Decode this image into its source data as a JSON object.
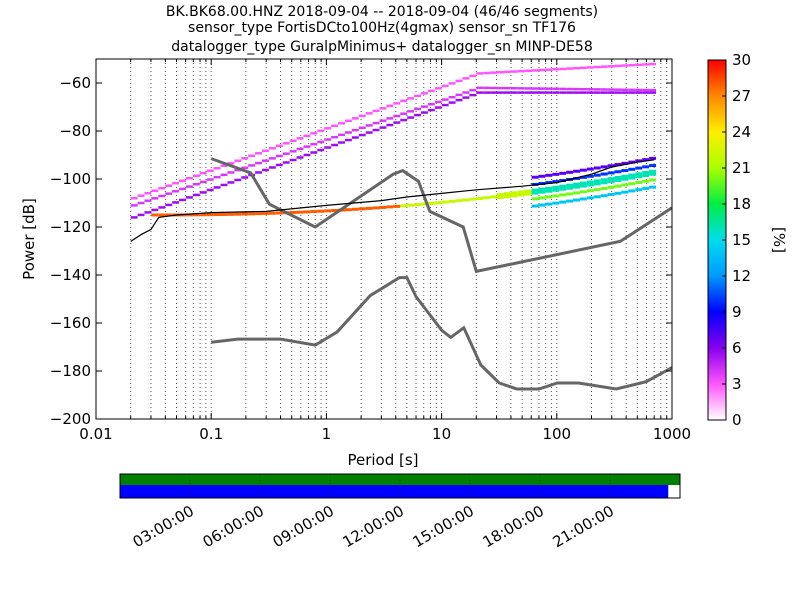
{
  "title_lines": [
    "BK.BK68.00.HNZ   2018-09-04 -- 2018-09-04  (46/46 segments)",
    "sensor_type FortisDCto100Hz(4gmax) sensor_sn TF176",
    "datalogger_type GuralpMinimus+ datalogger_sn MINP-DE58"
  ],
  "chart_data": {
    "type": "heatmap",
    "xlabel": "Period [s]",
    "ylabel": "Power [dB]",
    "xscale": "log",
    "xlim": [
      0.01,
      1000
    ],
    "ylim": [
      -200,
      -50
    ],
    "x_tick_labels": [
      "0.01",
      "0.1",
      "1",
      "10",
      "100",
      "1000"
    ],
    "x_tick_values": [
      0.01,
      0.1,
      1,
      10,
      100,
      1000
    ],
    "y_tick_values": [
      -200,
      -180,
      -160,
      -140,
      -120,
      -100,
      -80,
      -60
    ],
    "y_tick_labels": [
      "−200",
      "−180",
      "−160",
      "−140",
      "−120",
      "−100",
      "−80",
      "−60"
    ],
    "grid": "dotted vertical lines at periods",
    "colorbar": {
      "label": "[%]",
      "range": [
        0,
        30
      ],
      "tick_values": [
        0,
        3,
        6,
        9,
        12,
        15,
        18,
        21,
        24,
        27,
        30
      ],
      "tick_labels": [
        "0",
        "3",
        "6",
        "9",
        "12",
        "15",
        "18",
        "21",
        "24",
        "27",
        "30"
      ],
      "colormap": [
        "#ffffff",
        "#ff55ff",
        "#8800ee",
        "#0000ff",
        "#0099ff",
        "#00ddee",
        "#00ee44",
        "#aaff00",
        "#ffee00",
        "#ff8800",
        "#ff0000"
      ]
    },
    "noise_models": {
      "color": "#666666",
      "new_high_noise_model": [
        [
          0.1,
          -91.5
        ],
        [
          0.22,
          -97.4
        ],
        [
          0.32,
          -110.5
        ],
        [
          0.8,
          -120
        ],
        [
          3.8,
          -98
        ],
        [
          4.6,
          -96.5
        ],
        [
          6.3,
          -101
        ],
        [
          7.9,
          -113.5
        ],
        [
          15.4,
          -120
        ],
        [
          20,
          -138.5
        ],
        [
          354.8,
          -126
        ],
        [
          1000,
          -112
        ]
      ],
      "new_low_noise_model": [
        [
          0.1,
          -168
        ],
        [
          0.17,
          -166.7
        ],
        [
          0.4,
          -166.7
        ],
        [
          0.8,
          -169.2
        ],
        [
          1.24,
          -163.7
        ],
        [
          2.4,
          -148.6
        ],
        [
          4.3,
          -141.1
        ],
        [
          5,
          -141.1
        ],
        [
          6,
          -149
        ],
        [
          10,
          -163
        ],
        [
          12,
          -166
        ],
        [
          15.6,
          -162
        ],
        [
          21.9,
          -177.5
        ],
        [
          31.6,
          -185
        ],
        [
          45,
          -187.5
        ],
        [
          70,
          -187.5
        ],
        [
          101,
          -185
        ],
        [
          154,
          -185
        ],
        [
          328,
          -187.5
        ],
        [
          600,
          -184.4
        ],
        [
          1000,
          -178.6
        ]
      ]
    },
    "mode_curve": {
      "color": "#000000",
      "points": [
        [
          0.02,
          -126
        ],
        [
          0.025,
          -123
        ],
        [
          0.03,
          -121
        ],
        [
          0.035,
          -116
        ],
        [
          0.05,
          -115
        ],
        [
          0.1,
          -114
        ],
        [
          0.3,
          -113.5
        ],
        [
          1,
          -111
        ],
        [
          3,
          -109
        ],
        [
          5,
          -107.5
        ],
        [
          10,
          -106
        ],
        [
          20,
          -104.5
        ],
        [
          50,
          -103
        ],
        [
          100,
          -101.5
        ],
        [
          200,
          -98
        ],
        [
          300,
          -95
        ],
        [
          500,
          -93
        ],
        [
          700,
          -92
        ]
      ]
    },
    "density_bands": [
      {
        "name": "upper",
        "start": [
          0.02,
          -108
        ],
        "end": [
          20,
          -56
        ],
        "end_far": [
          700,
          -52
        ]
      },
      {
        "name": "middle",
        "start": [
          0.02,
          -111
        ],
        "end": [
          20,
          -62
        ],
        "end_far": [
          700,
          -63
        ]
      },
      {
        "name": "lower",
        "start": [
          0.02,
          -116
        ],
        "end": [
          20,
          -64
        ],
        "end_far": [
          700,
          -64
        ]
      },
      {
        "name": "main",
        "start": [
          0.03,
          -115
        ],
        "end": [
          700,
          -97
        ]
      }
    ]
  },
  "timeline": {
    "tick_labels": [
      "03:00:00",
      "06:00:00",
      "09:00:00",
      "12:00:00",
      "15:00:00",
      "18:00:00",
      "21:00:00"
    ],
    "tick_hours": [
      3,
      6,
      9,
      12,
      15,
      18,
      21
    ],
    "span_hours": 24,
    "coverage_fraction": 0.979,
    "top_bar_color": "#008000",
    "bottom_bar_color": "#0000ff"
  }
}
